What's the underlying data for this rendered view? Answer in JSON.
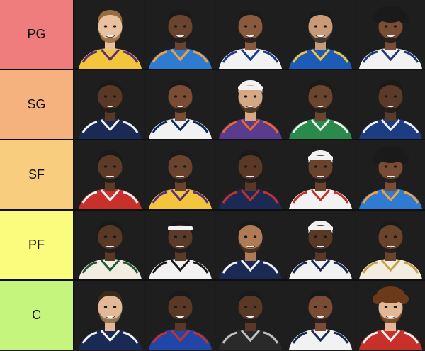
{
  "tiers": [
    {
      "label": "PG",
      "color": "#f07d7e",
      "players": [
        {
          "skin": "#e8c2a0",
          "hair": "#9a6b3c",
          "jersey": "#f2c53d",
          "trim": "#5a2d82",
          "beard": "#9a6b3c",
          "style": "short"
        },
        {
          "skin": "#6b4430",
          "hair": "#1a1a1a",
          "jersey": "#2f7bd1",
          "trim": "#f2a23a",
          "beard": "#1a1a1a",
          "style": "short"
        },
        {
          "skin": "#8a5a3e",
          "hair": "#1a1a1a",
          "jersey": "#f2f2f2",
          "trim": "#1b3a8a",
          "beard": "#1a1a1a",
          "style": "short"
        },
        {
          "skin": "#c89b76",
          "hair": "#1a1a1a",
          "jersey": "#1d5bb8",
          "trim": "#f7c432",
          "beard": "#2a2a2a",
          "style": "short"
        },
        {
          "skin": "#7a4e34",
          "hair": "#1a1a1a",
          "jersey": "#f2f2f2",
          "trim": "#1f3a7a",
          "beard": "#1a1a1a",
          "style": "curly"
        }
      ]
    },
    {
      "label": "SG",
      "color": "#f5b27f",
      "players": [
        {
          "skin": "#5a3826",
          "hair": "#1a1a1a",
          "jersey": "#1b2a55",
          "trim": "#f2f2f2",
          "beard": "#1a1a1a",
          "style": "short"
        },
        {
          "skin": "#7a4c33",
          "hair": "#1a1a1a",
          "jersey": "#f2f2f2",
          "trim": "#0e2a5a",
          "beard": "#1a1a1a",
          "style": "short"
        },
        {
          "skin": "#d6a883",
          "hair": "#f2f2f2",
          "jersey": "#5a3b8e",
          "trim": "#e56a2b",
          "beard": "#3a2a1a",
          "style": "headband"
        },
        {
          "skin": "#6b442e",
          "hair": "#1a1a1a",
          "jersey": "#2a8a4c",
          "trim": "#f2f2f2",
          "beard": "#1a1a1a",
          "style": "short"
        },
        {
          "skin": "#5a3a28",
          "hair": "#1a1a1a",
          "jersey": "#1d3c82",
          "trim": "#f2f2f2",
          "beard": "#1a1a1a",
          "style": "short"
        }
      ]
    },
    {
      "label": "SF",
      "color": "#f8cd7e",
      "players": [
        {
          "skin": "#5e3b27",
          "hair": "#1a1a1a",
          "jersey": "#c8302c",
          "trim": "#f2f2f2",
          "beard": "#1a1a1a",
          "style": "short"
        },
        {
          "skin": "#6a432d",
          "hair": "#1a1a1a",
          "jersey": "#f2c53d",
          "trim": "#5a2d82",
          "beard": "#1a1a1a",
          "style": "short"
        },
        {
          "skin": "#5a3826",
          "hair": "#1a1a1a",
          "jersey": "#1b2a55",
          "trim": "#c8302c",
          "beard": "#1a1a1a",
          "style": "short"
        },
        {
          "skin": "#6a432d",
          "hair": "#f2f2f2",
          "jersey": "#f2f2f2",
          "trim": "#c8302c",
          "beard": "#1a1a1a",
          "style": "headband"
        },
        {
          "skin": "#7a4c33",
          "hair": "#1a1a1a",
          "jersey": "#2f7bd1",
          "trim": "#f2a23a",
          "beard": "#1a1a1a",
          "style": "curly"
        }
      ]
    },
    {
      "label": "PF",
      "color": "#fbfb7e",
      "players": [
        {
          "skin": "#5a3826",
          "hair": "#1a1a1a",
          "jersey": "#f2ede0",
          "trim": "#1f5a3a",
          "beard": "#1a1a1a",
          "style": "short"
        },
        {
          "skin": "#5a3a28",
          "hair": "#1a1a1a",
          "jersey": "#f2f2f2",
          "trim": "#1a1a1a",
          "beard": "#1a1a1a",
          "style": "headband"
        },
        {
          "skin": "#b07a55",
          "hair": "#1a1a1a",
          "jersey": "#1b2a55",
          "trim": "#f2f2f2",
          "beard": "#3a2a1a",
          "style": "short"
        },
        {
          "skin": "#5a3826",
          "hair": "#f2f2f2",
          "jersey": "#f2f2f2",
          "trim": "#1b2a55",
          "beard": "#1a1a1a",
          "style": "headband"
        },
        {
          "skin": "#6a432d",
          "hair": "#1a1a1a",
          "jersey": "#f2ede0",
          "trim": "#c8a24a",
          "beard": "#1a1a1a",
          "style": "short"
        }
      ]
    },
    {
      "label": "C",
      "color": "#c5f57d",
      "players": [
        {
          "skin": "#e3b896",
          "hair": "#3a2a1a",
          "jersey": "#1b2a55",
          "trim": "#f2f2f2",
          "beard": "#8a6a4a",
          "style": "short"
        },
        {
          "skin": "#5a3826",
          "hair": "#1a1a1a",
          "jersey": "#2047a8",
          "trim": "#c8302c",
          "beard": "#1a1a1a",
          "style": "short"
        },
        {
          "skin": "#5a3826",
          "hair": "#1a1a1a",
          "jersey": "#2a2a2a",
          "trim": "#c0c0c0",
          "beard": "#1a1a1a",
          "style": "short"
        },
        {
          "skin": "#7a4c33",
          "hair": "#1a1a1a",
          "jersey": "#f2f2f2",
          "trim": "#1b2a55",
          "beard": "#1a1a1a",
          "style": "short"
        },
        {
          "skin": "#e3b896",
          "hair": "#6a3a1a",
          "jersey": "#c8302c",
          "trim": "#f2f2f2",
          "beard": "#6a3a1a",
          "style": "curly"
        }
      ]
    }
  ]
}
